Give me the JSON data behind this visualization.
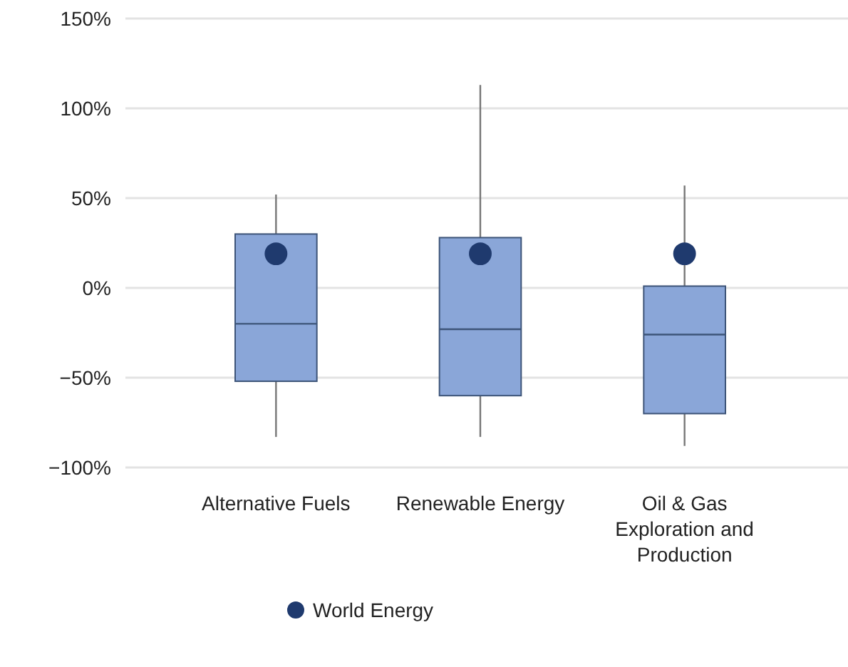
{
  "chart_data": {
    "type": "box",
    "categories": [
      "Alternative Fuels",
      "Renewable Energy",
      "Oil & Gas Exploration and Production"
    ],
    "boxes": [
      {
        "low": -83,
        "q1": -52,
        "median": -20,
        "q3": 30,
        "high": 52
      },
      {
        "low": -83,
        "q1": -60,
        "median": -23,
        "q3": 28,
        "high": 113
      },
      {
        "low": -88,
        "q1": -70,
        "median": -26,
        "q3": 1,
        "high": 57
      }
    ],
    "color": "#8aa6d8",
    "series": [
      {
        "type": "scatter",
        "name": "World Energy",
        "color": "#1f3a6e",
        "x": [
          "Alternative Fuels",
          "Renewable Energy",
          "Oil & Gas Exploration and Production"
        ],
        "values": [
          19,
          19,
          19
        ]
      }
    ],
    "ylim": [
      -100,
      150
    ],
    "yticks": [
      {
        "value": -100,
        "label": "−100%"
      },
      {
        "value": -50,
        "label": "−50%"
      },
      {
        "value": 0,
        "label": "0%"
      },
      {
        "value": 50,
        "label": "50%"
      },
      {
        "value": 100,
        "label": "100%"
      },
      {
        "value": 150,
        "label": "150%"
      }
    ],
    "grid": "y",
    "legend": "bottom",
    "marker": "circle"
  }
}
